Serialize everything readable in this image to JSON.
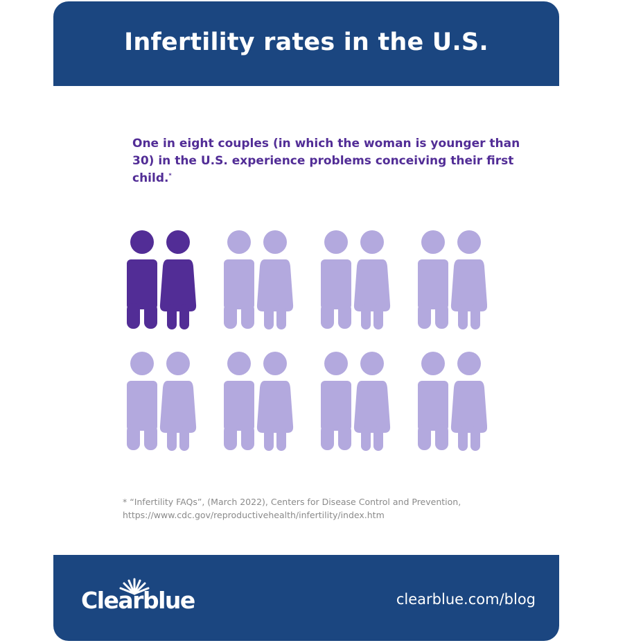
{
  "header": {
    "title": "Infertility rates in the U.S."
  },
  "headline": {
    "text": "One in eight couples (in which the woman is younger than 30) in the U.S. experience problems conceiving their first child.",
    "mark": "*"
  },
  "pictogram": {
    "total_couples": 8,
    "highlighted_couples": 1,
    "highlight_color": "#522d96",
    "base_color": "#b3a9de"
  },
  "footnote": {
    "line1": "* “Infertility FAQs”, (March 2022), Centers for Disease Control and Prevention,",
    "line2": "https://www.cdc.gov/reproductivehealth/infertility/index.htm"
  },
  "footer": {
    "brand": "Clearblue",
    "site": "clearblue.com/blog"
  },
  "colors": {
    "header_bg": "#1b4680",
    "headline": "#522d96",
    "footnote": "#8a8a8a"
  }
}
